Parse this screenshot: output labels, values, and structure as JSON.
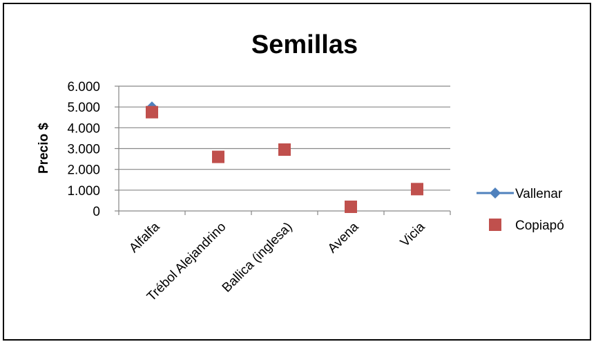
{
  "chart_data": {
    "type": "scatter",
    "title": "Semillas",
    "xlabel": "",
    "ylabel": "Precio $",
    "categories": [
      "Alfalfa",
      "Trébol Alejandrino",
      "Ballica (inglesa)",
      "Avena",
      "Vicia"
    ],
    "ylim": [
      0,
      6000
    ],
    "yticks": [
      {
        "value": 0,
        "label": "0"
      },
      {
        "value": 1000,
        "label": "1.000"
      },
      {
        "value": 2000,
        "label": "2.000"
      },
      {
        "value": 3000,
        "label": "3.000"
      },
      {
        "value": 4000,
        "label": "4.000"
      },
      {
        "value": 5000,
        "label": "5.000"
      },
      {
        "value": 6000,
        "label": "6.000"
      }
    ],
    "grid": true,
    "legend": "right",
    "series": [
      {
        "name": "Vallenar",
        "marker": "diamond",
        "color": "#4F81BD",
        "values": [
          5000,
          null,
          null,
          null,
          null
        ]
      },
      {
        "name": "Copiapó",
        "marker": "square",
        "color": "#C0504D",
        "values": [
          4750,
          2600,
          2950,
          200,
          1050
        ]
      }
    ]
  }
}
